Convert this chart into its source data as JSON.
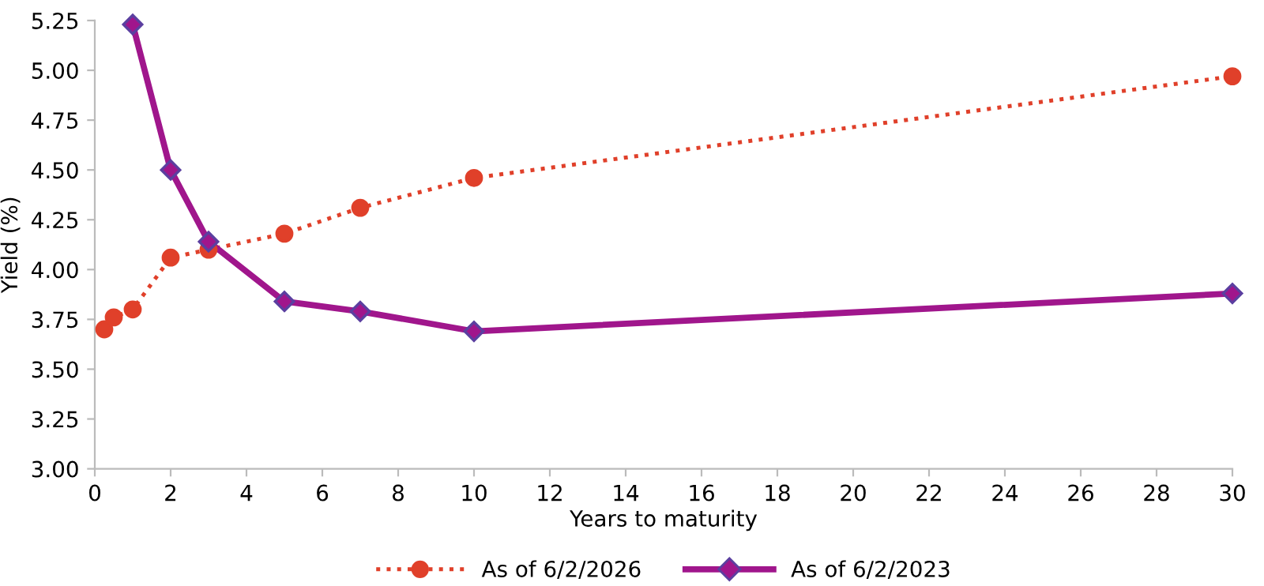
{
  "chart_data": {
    "type": "line",
    "xlabel": "Years to maturity",
    "ylabel": "Yield (%)",
    "series": [
      {
        "name": "As of 6/2/2026",
        "color": "#e0402a",
        "marker": "circle",
        "line_style": "dotted",
        "x": [
          0.25,
          0.5,
          1,
          2,
          3,
          5,
          7,
          10,
          30
        ],
        "values": [
          3.7,
          3.76,
          3.8,
          4.06,
          4.1,
          4.18,
          4.31,
          4.46,
          4.97
        ]
      },
      {
        "name": "As of 6/2/2023",
        "color": "#a0168c",
        "marker": "diamond",
        "line_style": "solid",
        "x": [
          1,
          2,
          3,
          5,
          7,
          10,
          30
        ],
        "values": [
          5.23,
          4.5,
          4.14,
          3.84,
          3.79,
          3.69,
          3.88
        ]
      }
    ],
    "xlim": [
      0,
      30
    ],
    "xticks": [
      0,
      2,
      4,
      6,
      8,
      10,
      12,
      14,
      16,
      18,
      20,
      22,
      24,
      26,
      28,
      30
    ],
    "ylim": [
      3.0,
      5.25
    ],
    "yticks": [
      {
        "value": 3.0,
        "label": "3.00"
      },
      {
        "value": 3.25,
        "label": "3.25"
      },
      {
        "value": 3.5,
        "label": "3.50"
      },
      {
        "value": 3.75,
        "label": "3.75"
      },
      {
        "value": 4.0,
        "label": "4.00"
      },
      {
        "value": 4.25,
        "label": "4.25"
      },
      {
        "value": 4.5,
        "label": "4.50"
      },
      {
        "value": 4.75,
        "label": "4.75"
      },
      {
        "value": 5.0,
        "label": "5.00"
      },
      {
        "value": 5.25,
        "label": "5.25"
      }
    ],
    "grid": false,
    "legend": "bottom"
  }
}
